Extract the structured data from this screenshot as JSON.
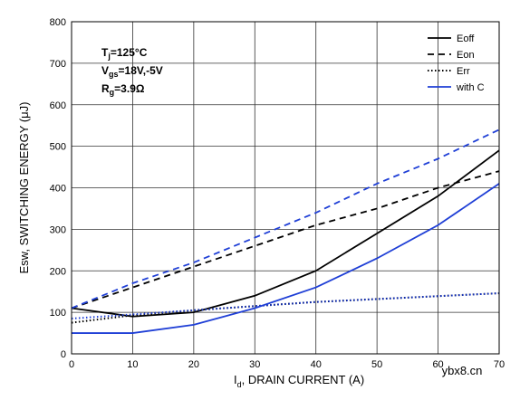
{
  "chart_data": {
    "type": "line",
    "xlabel_main": "I",
    "xlabel_sub": "d",
    "xlabel_rest": ", DRAIN CURRENT (A)",
    "ylabel": "Esw, SWITCHING ENERGY (μJ)",
    "xlim": [
      0,
      70
    ],
    "ylim": [
      0,
      800
    ],
    "xticks": [
      0,
      10,
      20,
      30,
      40,
      50,
      60,
      70
    ],
    "yticks": [
      0,
      100,
      200,
      300,
      400,
      500,
      600,
      700,
      800
    ],
    "grid": true,
    "legend_position": "top-right",
    "annotation": {
      "line1": {
        "main": "T",
        "sub": "j",
        "rest": "=125°C"
      },
      "line2": {
        "main": "V",
        "sub": "gs",
        "rest": "=18V,-5V"
      },
      "line3": {
        "main": "R",
        "sub": "g",
        "rest": "=3.9Ω"
      }
    },
    "series": [
      {
        "name": "Eoff",
        "color": "#000000",
        "dash": "solid",
        "x": [
          0,
          10,
          20,
          30,
          40,
          50,
          60,
          70
        ],
        "y": [
          110,
          90,
          100,
          140,
          200,
          290,
          380,
          490
        ]
      },
      {
        "name": "Eon",
        "color": "#000000",
        "dash": "dashed",
        "x": [
          0,
          10,
          20,
          30,
          40,
          50,
          60,
          70
        ],
        "y": [
          110,
          160,
          210,
          260,
          310,
          350,
          400,
          440
        ]
      },
      {
        "name": "Err",
        "color": "#000000",
        "dash": "dotted",
        "x": [
          0,
          10,
          20,
          30,
          40,
          50,
          60,
          70
        ],
        "y": [
          75,
          93,
          105,
          115,
          125,
          132,
          139,
          146
        ]
      },
      {
        "name": "with C",
        "color": "#1f3fd6",
        "dash": "solid",
        "x": [
          0,
          10,
          20,
          30,
          40,
          50,
          60,
          70
        ],
        "y": [
          50,
          50,
          70,
          110,
          160,
          230,
          310,
          410
        ]
      },
      {
        "name": "",
        "color": "#1f3fd6",
        "dash": "dashed",
        "x": [
          0,
          10,
          20,
          30,
          40,
          50,
          60,
          70
        ],
        "y": [
          110,
          170,
          220,
          280,
          340,
          410,
          470,
          540
        ]
      },
      {
        "name": "",
        "color": "#1f3fd6",
        "dash": "dotted",
        "x": [
          0,
          10,
          20,
          30,
          40,
          50,
          60,
          70
        ],
        "y": [
          85,
          95,
          105,
          115,
          125,
          132,
          139,
          146
        ]
      }
    ]
  },
  "watermark": "ybx8.cn"
}
